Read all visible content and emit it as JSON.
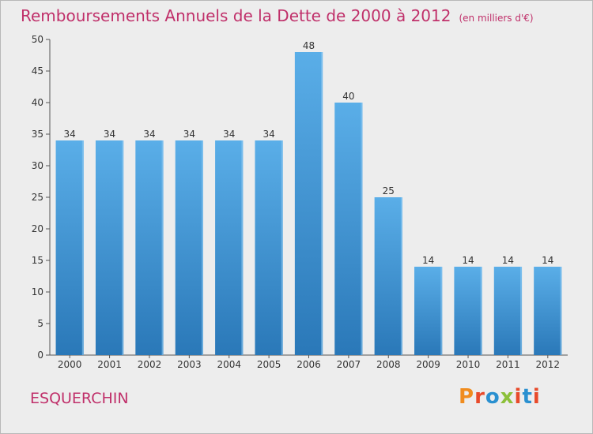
{
  "title": "Remboursements Annuels de la Dette de 2000 à 2012",
  "unit": "(en milliers d'€)",
  "city": "ESQUERCHIN",
  "logo": "Proxiti",
  "colors": {
    "title": "#c0306a",
    "bar_top": "#5aaee8",
    "bar_bottom": "#2a78b8",
    "background": "#ededed",
    "logo_letters": [
      "#f08c1e",
      "#e84a2a",
      "#2a90d0",
      "#8cc03a",
      "#e84a2a",
      "#2a90d0",
      "#e84a2a"
    ]
  },
  "chart_data": {
    "type": "bar",
    "title": "Remboursements Annuels de la Dette de 2000 à 2012",
    "categories": [
      "2000",
      "2001",
      "2002",
      "2003",
      "2004",
      "2005",
      "2006",
      "2007",
      "2008",
      "2009",
      "2010",
      "2011",
      "2012"
    ],
    "values": [
      34,
      34,
      34,
      34,
      34,
      34,
      48,
      40,
      25,
      14,
      14,
      14,
      14
    ],
    "ylim": [
      0,
      50
    ],
    "yticks": [
      0,
      5,
      10,
      15,
      20,
      25,
      30,
      35,
      40,
      45,
      50
    ],
    "grid": false,
    "data_labels": true
  }
}
